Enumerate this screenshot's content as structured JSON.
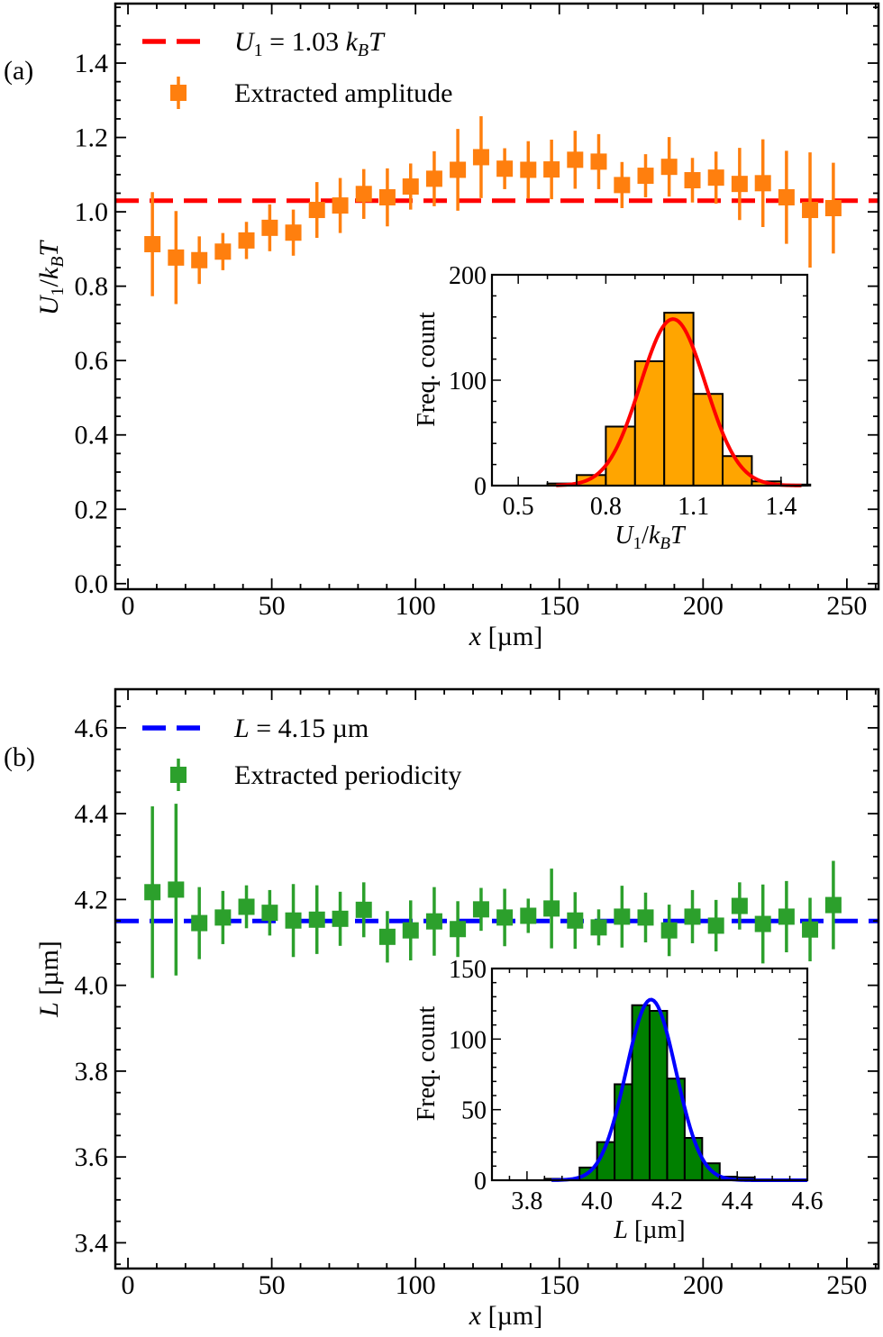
{
  "chart_data": [
    {
      "type": "scatter",
      "panel_label": "(a)",
      "xlabel": "x [µm]",
      "ylabel": "U1/kBT",
      "xlim": [
        -4.4,
        261
      ],
      "ylim": [
        -0.015,
        1.56
      ],
      "xticks": [
        0,
        50,
        100,
        150,
        200,
        250
      ],
      "xtick_labels": [
        "0",
        "50",
        "100",
        "150",
        "200",
        "250"
      ],
      "yticks": [
        0.0,
        0.2,
        0.4,
        0.6,
        0.8,
        1.0,
        1.2,
        1.4
      ],
      "ytick_labels": [
        "0.0",
        "0.2",
        "0.4",
        "0.6",
        "0.8",
        "1.0",
        "1.2",
        "1.4"
      ],
      "grid": false,
      "legend_position": "top-left",
      "reference_line": {
        "value": 1.03,
        "label_main": "U",
        "label_sub": "1",
        "label_rest": " = 1.03 ",
        "label_k": "k",
        "label_ksub": "B",
        "label_T": "T",
        "color": "#ff0000",
        "style": "dashed"
      },
      "series": [
        {
          "name": "Extracted amplitude",
          "color": "#ff7f0e",
          "x": [
            8.5,
            16.7,
            24.8,
            33.0,
            41.2,
            49.3,
            57.5,
            65.7,
            73.8,
            82.0,
            90.2,
            98.3,
            106.5,
            114.7,
            122.8,
            131.0,
            139.2,
            147.3,
            155.5,
            163.7,
            171.8,
            180.0,
            188.2,
            196.3,
            204.5,
            212.7,
            220.8,
            229.0,
            237.2,
            245.3
          ],
          "y": [
            0.913,
            0.877,
            0.87,
            0.893,
            0.923,
            0.957,
            0.944,
            1.005,
            1.017,
            1.048,
            1.039,
            1.068,
            1.089,
            1.113,
            1.147,
            1.116,
            1.113,
            1.114,
            1.14,
            1.135,
            1.072,
            1.097,
            1.121,
            1.085,
            1.092,
            1.075,
            1.077,
            1.039,
            1.005,
            1.01
          ],
          "yerr": [
            0.14,
            0.125,
            0.064,
            0.05,
            0.05,
            0.063,
            0.062,
            0.075,
            0.074,
            0.067,
            0.078,
            0.062,
            0.074,
            0.11,
            0.11,
            0.055,
            0.077,
            0.08,
            0.078,
            0.074,
            0.062,
            0.058,
            0.08,
            0.06,
            0.07,
            0.097,
            0.118,
            0.125,
            0.155,
            0.122
          ]
        }
      ],
      "inset": {
        "type": "bar",
        "xlabel": "U1/kBT",
        "ylabel": "Freq. count",
        "xlim": [
          0.41,
          1.49
        ],
        "ylim": [
          0,
          200
        ],
        "xticks": [
          0.5,
          0.8,
          1.1,
          1.4
        ],
        "xtick_labels": [
          "0.5",
          "0.8",
          "1.1",
          "1.4"
        ],
        "yticks": [
          0,
          100,
          200
        ],
        "ytick_labels": [
          "0",
          "100",
          "200"
        ],
        "bin_edges": [
          0.6,
          0.7,
          0.8,
          0.9,
          1.0,
          1.1,
          1.2,
          1.3,
          1.4,
          1.5
        ],
        "counts": [
          2,
          10,
          56,
          118,
          164,
          87,
          28,
          4,
          1
        ],
        "bar_color": "#ffa500",
        "fit": {
          "type": "gaussian",
          "mean": 1.03,
          "sigma": 0.112,
          "amplitude": 158,
          "color": "#ff0000",
          "range": [
            0.63,
            1.47
          ]
        }
      }
    },
    {
      "type": "scatter",
      "panel_label": "(b)",
      "xlabel": "x [µm]",
      "ylabel": "L [µm]",
      "xlim": [
        -4.4,
        261
      ],
      "ylim": [
        3.34,
        4.69
      ],
      "xticks": [
        0,
        50,
        100,
        150,
        200,
        250
      ],
      "xtick_labels": [
        "0",
        "50",
        "100",
        "150",
        "200",
        "250"
      ],
      "yticks": [
        3.4,
        3.6,
        3.8,
        4.0,
        4.2,
        4.4,
        4.6
      ],
      "ytick_labels": [
        "3.4",
        "3.6",
        "3.8",
        "4.0",
        "4.2",
        "4.4",
        "4.6"
      ],
      "grid": false,
      "legend_position": "top-left",
      "reference_line": {
        "value": 4.15,
        "label_main": "L",
        "label_rest": " = 4.15 µm",
        "color": "#0000ff",
        "style": "dashed"
      },
      "series": [
        {
          "name": "Extracted periodicity",
          "color": "#2ca02c",
          "x": [
            8.5,
            16.7,
            24.8,
            33.0,
            41.2,
            49.3,
            57.5,
            65.7,
            73.8,
            82.0,
            90.2,
            98.3,
            106.5,
            114.7,
            122.8,
            131.0,
            139.2,
            147.3,
            155.5,
            163.7,
            171.8,
            180.0,
            188.2,
            196.3,
            204.5,
            212.7,
            220.8,
            229.0,
            237.2,
            245.3
          ],
          "y": [
            4.217,
            4.223,
            4.145,
            4.158,
            4.183,
            4.169,
            4.151,
            4.153,
            4.155,
            4.176,
            4.113,
            4.128,
            4.149,
            4.131,
            4.177,
            4.158,
            4.162,
            4.179,
            4.151,
            4.135,
            4.16,
            4.158,
            4.128,
            4.16,
            4.139,
            4.185,
            4.143,
            4.16,
            4.13,
            4.187
          ],
          "yerr": [
            0.2,
            0.2,
            0.084,
            0.062,
            0.05,
            0.053,
            0.085,
            0.08,
            0.063,
            0.064,
            0.06,
            0.07,
            0.08,
            0.065,
            0.05,
            0.067,
            0.04,
            0.093,
            0.066,
            0.042,
            0.072,
            0.058,
            0.06,
            0.062,
            0.06,
            0.055,
            0.092,
            0.083,
            0.074,
            0.103
          ]
        }
      ],
      "inset": {
        "type": "bar",
        "xlabel": "L [µm]",
        "ylabel": "Freq. count",
        "xlim": [
          3.7,
          4.6
        ],
        "ylim": [
          0,
          150
        ],
        "xticks": [
          3.8,
          4.0,
          4.2,
          4.4,
          4.6
        ],
        "xtick_labels": [
          "3.8",
          "4.0",
          "4.2",
          "4.4",
          "4.6"
        ],
        "yticks": [
          0,
          50,
          100,
          150
        ],
        "ytick_labels": [
          "0",
          "50",
          "100",
          "150"
        ],
        "bin_edges": [
          3.85,
          3.9,
          3.95,
          4.0,
          4.05,
          4.1,
          4.15,
          4.2,
          4.25,
          4.3,
          4.35,
          4.4,
          4.45
        ],
        "counts": [
          1,
          0,
          9,
          27,
          68,
          124,
          120,
          72,
          30,
          12,
          2.5,
          2
        ],
        "bar_color": "#008000",
        "fit": {
          "type": "gaussian",
          "mean": 4.154,
          "sigma": 0.071,
          "amplitude": 128,
          "color": "#0000ff",
          "range": [
            3.87,
            4.6
          ]
        }
      }
    }
  ]
}
